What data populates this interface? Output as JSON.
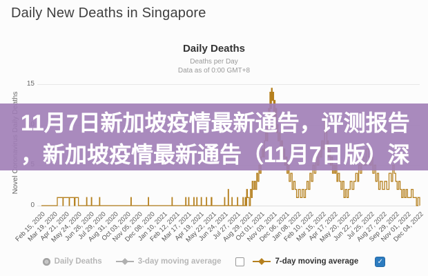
{
  "page": {
    "title": "Daily New Deaths in Singapore"
  },
  "chart": {
    "title": "Daily Deaths",
    "subtitle_line1": "Deaths per Day",
    "subtitle_line2": "Data as of 0:00 GMT+8",
    "y_axis_title": "Novel Coronavirus Daily Deaths",
    "y_ticks": {
      "t15": "15",
      "t10": "10",
      "t5": "5",
      "t0": "0"
    },
    "line_color": "#b5801e"
  },
  "overlay_banner": {
    "line1": "11月7日新加坡疫情最新通告，评测报告",
    "line2": "，新加坡疫情最新通告（11月7日版）深",
    "background_color": "#a07db6",
    "text_color": "#ffffff"
  },
  "legend": {
    "items": [
      {
        "label": "Daily Deaths",
        "state": "disabled",
        "marker": "circle",
        "color": "#b0b0b0"
      },
      {
        "label": "3-day moving average",
        "state": "disabled",
        "marker": "line-diamond",
        "color": "#b0b0b0"
      },
      {
        "label": "7-day moving average",
        "state": "active",
        "marker": "line-diamond",
        "color": "#b5801e"
      }
    ],
    "checkbox_before_7day": "unchecked",
    "checkbox_after_7day": "checked",
    "checkbox_checked_color": "#2d7cc0"
  },
  "icons": {
    "check": "✓"
  },
  "chart_data": {
    "type": "line",
    "title": "Daily Deaths",
    "xlabel": "",
    "ylabel": "Novel Coronavirus Daily Deaths",
    "ylim": [
      0,
      15
    ],
    "grid": "horizontal",
    "legend_position": "bottom",
    "x_start_date": "Feb 15, 2020",
    "x_end_date": "Dec 04, 2022",
    "x_range_days": [
      0,
      1023
    ],
    "x_tick_labels": [
      "Feb 15, 2020",
      "Mar 19, 2020",
      "Apr 21, 2020",
      "May 24, 2020",
      "Jun 26, 2020",
      "Jul 29, 2020",
      "Aug 31, 2020",
      "Oct 03, 2020",
      "Nov 05, 2020",
      "Dec 08, 2020",
      "Jan 10, 2021",
      "Feb 12, 2021",
      "Mar 17, 2021",
      "Apr 19, 2021",
      "May 22, 2021",
      "Jun 24, 2021",
      "Jul 27, 2021",
      "Aug 29, 2021",
      "Oct 01, 2021",
      "Nov 03, 2021",
      "Dec 06, 2021",
      "Jan 08, 2022",
      "Feb 10, 2022",
      "Mar 15, 2022",
      "Apr 17, 2022",
      "May 20, 2022",
      "Jun 22, 2022",
      "Jul 25, 2022",
      "Aug 27, 2022",
      "Sep 29, 2022",
      "Nov 01, 2022",
      "Dec 04, 2022"
    ],
    "series": [
      {
        "name": "Daily Deaths",
        "color": "#b5801e",
        "interpolation": "step-after",
        "points_format": [
          "day_offset_from_Feb_15_2020",
          "deaths"
        ],
        "points": [
          [
            0,
            0
          ],
          [
            42,
            0
          ],
          [
            43,
            1
          ],
          [
            57,
            1
          ],
          [
            58,
            0
          ],
          [
            59,
            1
          ],
          [
            74,
            1
          ],
          [
            75,
            0
          ],
          [
            76,
            1
          ],
          [
            88,
            1
          ],
          [
            89,
            0
          ],
          [
            91,
            1
          ],
          [
            99,
            1
          ],
          [
            100,
            0
          ],
          [
            122,
            1
          ],
          [
            123,
            0
          ],
          [
            135,
            1
          ],
          [
            136,
            0
          ],
          [
            157,
            1
          ],
          [
            158,
            0
          ],
          [
            242,
            1
          ],
          [
            243,
            0
          ],
          [
            289,
            1
          ],
          [
            290,
            0
          ],
          [
            353,
            1
          ],
          [
            354,
            0
          ],
          [
            390,
            1
          ],
          [
            391,
            0
          ],
          [
            398,
            1
          ],
          [
            399,
            0
          ],
          [
            412,
            1
          ],
          [
            413,
            0
          ],
          [
            420,
            1
          ],
          [
            421,
            0
          ],
          [
            432,
            1
          ],
          [
            433,
            0
          ],
          [
            446,
            1
          ],
          [
            447,
            0
          ],
          [
            459,
            1
          ],
          [
            461,
            0
          ],
          [
            495,
            1
          ],
          [
            496,
            0
          ],
          [
            505,
            2
          ],
          [
            506,
            0
          ],
          [
            515,
            1
          ],
          [
            516,
            0
          ],
          [
            530,
            1
          ],
          [
            531,
            0
          ],
          [
            545,
            1
          ],
          [
            546,
            0
          ],
          [
            551,
            1
          ],
          [
            553,
            0
          ],
          [
            555,
            2
          ],
          [
            557,
            1
          ],
          [
            560,
            1
          ],
          [
            562,
            0
          ],
          [
            565,
            2
          ],
          [
            568,
            1
          ],
          [
            570,
            3
          ],
          [
            573,
            2
          ],
          [
            576,
            3
          ],
          [
            579,
            2
          ],
          [
            582,
            4
          ],
          [
            585,
            3
          ],
          [
            588,
            5
          ],
          [
            591,
            4
          ],
          [
            594,
            6
          ],
          [
            597,
            7
          ],
          [
            600,
            6
          ],
          [
            603,
            8
          ],
          [
            606,
            9
          ],
          [
            609,
            8
          ],
          [
            612,
            10
          ],
          [
            614,
            12
          ],
          [
            616,
            11
          ],
          [
            618,
            14
          ],
          [
            620,
            12
          ],
          [
            622,
            14.5
          ],
          [
            624,
            13
          ],
          [
            626,
            14
          ],
          [
            628,
            11
          ],
          [
            630,
            13
          ],
          [
            632,
            10
          ],
          [
            634,
            12
          ],
          [
            636,
            9
          ],
          [
            638,
            10
          ],
          [
            640,
            8
          ],
          [
            643,
            9
          ],
          [
            646,
            7
          ],
          [
            649,
            8
          ],
          [
            652,
            6
          ],
          [
            655,
            7
          ],
          [
            658,
            5
          ],
          [
            661,
            6
          ],
          [
            664,
            4
          ],
          [
            667,
            5
          ],
          [
            670,
            3
          ],
          [
            674,
            4
          ],
          [
            678,
            2
          ],
          [
            682,
            3
          ],
          [
            686,
            2
          ],
          [
            690,
            1
          ],
          [
            695,
            2
          ],
          [
            700,
            1
          ],
          [
            705,
            2
          ],
          [
            710,
            1
          ],
          [
            714,
            2
          ],
          [
            718,
            3
          ],
          [
            722,
            2
          ],
          [
            726,
            4
          ],
          [
            730,
            3
          ],
          [
            734,
            5
          ],
          [
            738,
            4
          ],
          [
            742,
            6
          ],
          [
            746,
            5
          ],
          [
            750,
            7
          ],
          [
            754,
            6
          ],
          [
            758,
            8
          ],
          [
            762,
            7
          ],
          [
            766,
            11
          ],
          [
            768,
            9
          ],
          [
            770,
            10
          ],
          [
            772,
            7
          ],
          [
            774,
            8
          ],
          [
            776,
            6
          ],
          [
            778,
            7
          ],
          [
            781,
            5
          ],
          [
            784,
            6
          ],
          [
            787,
            4
          ],
          [
            790,
            5
          ],
          [
            793,
            4
          ],
          [
            796,
            5
          ],
          [
            799,
            3
          ],
          [
            802,
            4
          ],
          [
            806,
            3
          ],
          [
            810,
            2
          ],
          [
            814,
            3
          ],
          [
            818,
            1
          ],
          [
            822,
            2
          ],
          [
            826,
            1
          ],
          [
            830,
            2
          ],
          [
            835,
            3
          ],
          [
            840,
            2
          ],
          [
            845,
            3
          ],
          [
            850,
            4
          ],
          [
            855,
            3
          ],
          [
            858,
            5
          ],
          [
            862,
            4
          ],
          [
            866,
            6
          ],
          [
            872,
            5
          ],
          [
            878,
            7
          ],
          [
            884,
            6
          ],
          [
            888,
            5
          ],
          [
            892,
            6
          ],
          [
            896,
            4
          ],
          [
            900,
            5
          ],
          [
            904,
            3
          ],
          [
            908,
            4
          ],
          [
            912,
            2
          ],
          [
            916,
            3
          ],
          [
            922,
            2
          ],
          [
            928,
            3
          ],
          [
            934,
            2
          ],
          [
            940,
            4
          ],
          [
            946,
            3
          ],
          [
            950,
            5
          ],
          [
            954,
            4
          ],
          [
            958,
            3
          ],
          [
            962,
            2
          ],
          [
            966,
            3
          ],
          [
            970,
            2
          ],
          [
            974,
            1
          ],
          [
            978,
            2
          ],
          [
            982,
            1
          ],
          [
            986,
            2
          ],
          [
            990,
            1
          ],
          [
            995,
            1
          ],
          [
            1000,
            2
          ],
          [
            1005,
            1
          ],
          [
            1010,
            1
          ],
          [
            1014,
            0
          ],
          [
            1018,
            1
          ],
          [
            1023,
            0
          ]
        ]
      }
    ]
  }
}
